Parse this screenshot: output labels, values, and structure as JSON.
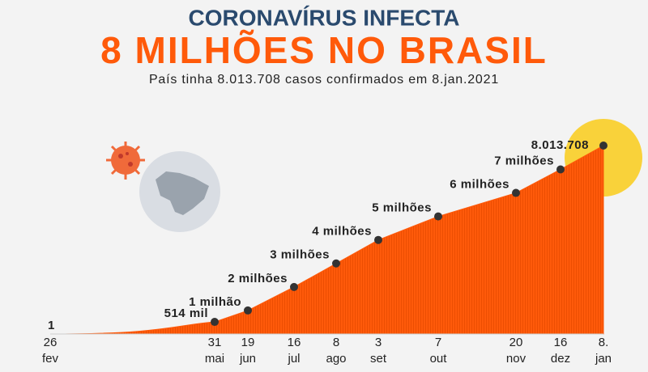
{
  "chart_data": {
    "type": "area",
    "kicker": "CORONAVÍRUS INFECTA",
    "title": "8 MILHÕES NO BRASIL",
    "subtitle": "País tinha 8.013.708 casos confirmados em 8.jan.2021",
    "x_days": [
      "26",
      "31",
      "19",
      "16",
      "8",
      "3",
      "7",
      "20",
      "16",
      "8."
    ],
    "x_months": [
      "fev",
      "mai",
      "jun",
      "jul",
      "ago",
      "set",
      "out",
      "nov",
      "dez",
      "jan"
    ],
    "values": [
      1,
      514000,
      1000000,
      2000000,
      3000000,
      4000000,
      5000000,
      6000000,
      7000000,
      8013708
    ],
    "value_labels": [
      "1",
      "514 mil",
      "1 milhão",
      "2 milhões",
      "3 milhões",
      "4 milhões",
      "5 milhões",
      "6 milhões",
      "7 milhões",
      "8.013.708"
    ],
    "color": "#ff5a0a"
  }
}
